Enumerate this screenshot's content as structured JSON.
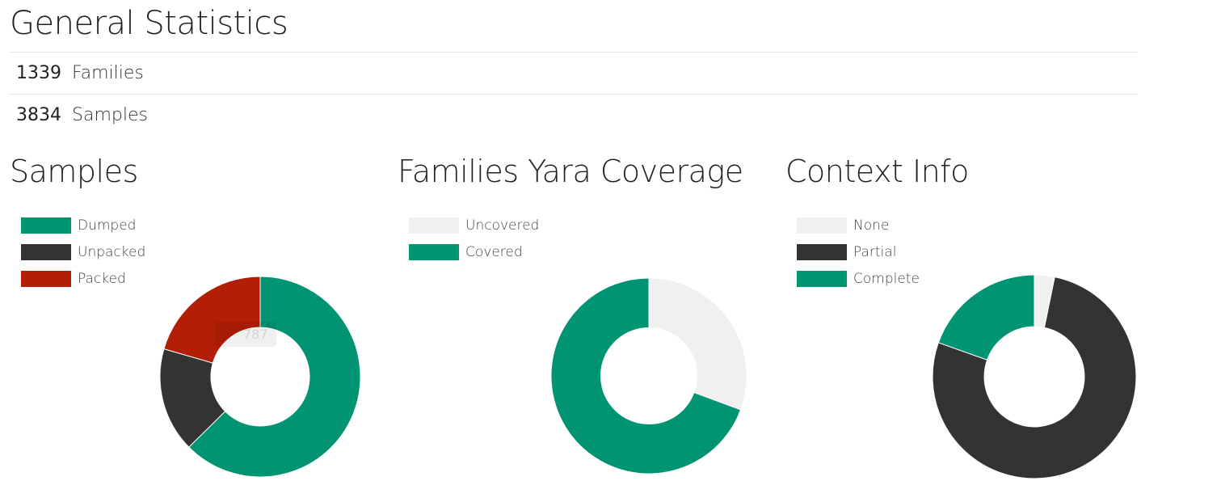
{
  "page": {
    "title": "General Statistics"
  },
  "stats": [
    {
      "count": "1339",
      "label": "Families"
    },
    {
      "count": "3834",
      "label": "Samples"
    }
  ],
  "tooltip": {
    "text": "787"
  },
  "colors": {
    "teal": "#009473",
    "dark": "#333333",
    "red": "#b31e06",
    "light": "#f0f0f0"
  },
  "chart_data": [
    {
      "type": "pie",
      "title": "Samples",
      "series": [
        {
          "name": "Dumped",
          "value": 2400,
          "color": "#009473"
        },
        {
          "name": "Unpacked",
          "value": 647,
          "color": "#333333"
        },
        {
          "name": "Packed",
          "value": 787,
          "color": "#b31e06"
        }
      ]
    },
    {
      "type": "pie",
      "title": "Families Yara Coverage",
      "series": [
        {
          "name": "Uncovered",
          "value": 410,
          "color": "#f0f0f0"
        },
        {
          "name": "Covered",
          "value": 929,
          "color": "#009473"
        }
      ]
    },
    {
      "type": "pie",
      "title": "Context Info",
      "series": [
        {
          "name": "None",
          "value": 43,
          "color": "#f0f0f0"
        },
        {
          "name": "Partial",
          "value": 1034,
          "color": "#333333"
        },
        {
          "name": "Complete",
          "value": 262,
          "color": "#009473"
        }
      ]
    }
  ]
}
